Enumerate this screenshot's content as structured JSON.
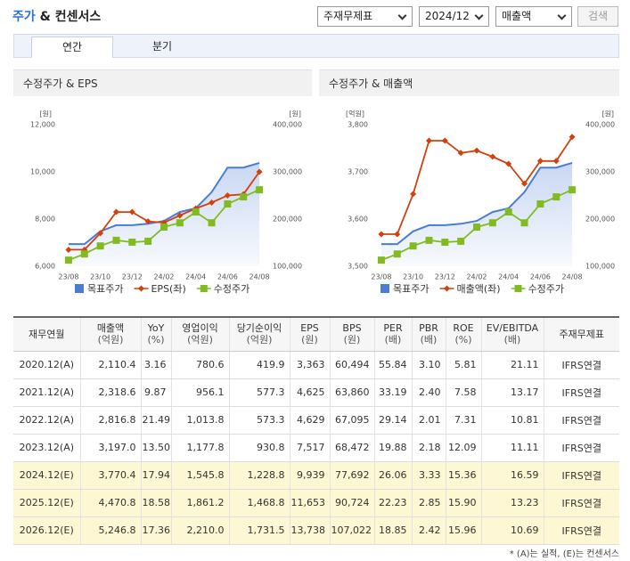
{
  "header": {
    "title": "주가",
    "title_suffix": "& 컨센서스",
    "selects": [
      "주재무제표",
      "2024/12",
      "매출액"
    ],
    "button": "검색"
  },
  "tabs": [
    "연간",
    "분기"
  ],
  "chart_data": [
    {
      "type": "line",
      "title": "수정주가 & EPS",
      "y_label": "[원]",
      "y2_label": "[원]",
      "categories": [
        "23/08",
        null,
        "23/10",
        null,
        "23/12",
        null,
        "24/02",
        null,
        "24/04",
        null,
        "24/06",
        null,
        "24/08"
      ],
      "ylim": [
        6000,
        12000
      ],
      "yticks": [
        {
          "value": 6000,
          "label": "6,000"
        },
        {
          "value": 8000,
          "label": "8,000"
        },
        {
          "value": 10000,
          "label": "10,000"
        },
        {
          "value": 12000,
          "label": "12,000"
        }
      ],
      "y2lim": [
        100000,
        400000
      ],
      "y2ticks": [
        {
          "value": 100000,
          "label": "100,000"
        },
        {
          "value": 200000,
          "label": "200,000"
        },
        {
          "value": 300000,
          "label": "300,000"
        },
        {
          "value": 400000,
          "label": "400,000"
        }
      ],
      "series": [
        {
          "name": "목표주가",
          "color": "#4a7bd8",
          "axis": "y2",
          "marker": "none",
          "fill": true,
          "values": [
            147000,
            147000,
            174000,
            187000,
            187000,
            190000,
            196000,
            215000,
            223000,
            257000,
            309000,
            309000,
            319000
          ]
        },
        {
          "name": "EPS(좌)",
          "color": "#d4400c",
          "marker": "diamond",
          "values": [
            6700,
            6700,
            7400,
            8300,
            8300,
            7900,
            7850,
            8150,
            8450,
            8700,
            9000,
            9050,
            10000
          ]
        },
        {
          "name": "수정주가",
          "color": "#80bc1f",
          "axis": "y2",
          "marker": "square",
          "values": [
            113000,
            126000,
            143000,
            155000,
            151000,
            153000,
            183000,
            192000,
            215000,
            192000,
            232000,
            247000,
            262000
          ]
        }
      ]
    },
    {
      "type": "line",
      "title": "수정주가 & 매출액",
      "y_label": "[억원]",
      "y2_label": "[원]",
      "categories": [
        "23/08",
        null,
        "23/10",
        null,
        "23/12",
        null,
        "24/02",
        null,
        "24/04",
        null,
        "24/06",
        null,
        "24/08"
      ],
      "ylim": [
        3500,
        3800
      ],
      "yticks": [
        {
          "value": 3500,
          "label": "3,500"
        },
        {
          "value": 3600,
          "label": "3,600"
        },
        {
          "value": 3700,
          "label": "3,700"
        },
        {
          "value": 3800,
          "label": "3,800"
        }
      ],
      "y2lim": [
        100000,
        400000
      ],
      "y2ticks": [
        {
          "value": 100000,
          "label": "100,000"
        },
        {
          "value": 200000,
          "label": "200,000"
        },
        {
          "value": 300000,
          "label": "300,000"
        },
        {
          "value": 400000,
          "label": "400,000"
        }
      ],
      "series": [
        {
          "name": "목표주가",
          "color": "#4a7bd8",
          "axis": "y2",
          "marker": "none",
          "fill": true,
          "values": [
            147000,
            147000,
            174000,
            187000,
            187000,
            190000,
            196000,
            215000,
            223000,
            257000,
            309000,
            309000,
            319000
          ]
        },
        {
          "name": "매출액(좌)",
          "color": "#d4400c",
          "marker": "diamond",
          "values": [
            3568,
            3568,
            3653,
            3766,
            3766,
            3740,
            3745,
            3732,
            3717,
            3675,
            3723,
            3723,
            3774
          ]
        },
        {
          "name": "수정주가",
          "color": "#80bc1f",
          "axis": "y2",
          "marker": "square",
          "values": [
            113000,
            126000,
            143000,
            155000,
            151000,
            153000,
            183000,
            192000,
            215000,
            192000,
            232000,
            247000,
            262000
          ]
        }
      ]
    }
  ],
  "table": {
    "columns": [
      {
        "label": "재무연월"
      },
      {
        "label": "매출액",
        "unit": "(억원)"
      },
      {
        "label": "YoY",
        "unit": "(%)"
      },
      {
        "label": "영업이익",
        "unit": "(억원)"
      },
      {
        "label": "당기순이익",
        "unit": "(억원)"
      },
      {
        "label": "EPS",
        "unit": "(원)"
      },
      {
        "label": "BPS",
        "unit": "(원)"
      },
      {
        "label": "PER",
        "unit": "(배)"
      },
      {
        "label": "PBR",
        "unit": "(배)"
      },
      {
        "label": "ROE",
        "unit": "(%)"
      },
      {
        "label": "EV/EBITDA",
        "unit": "(배)"
      },
      {
        "label": "주재무제표"
      }
    ],
    "rows": [
      [
        "2020.12(A)",
        "2,110.4",
        "3.16",
        "780.6",
        "419.9",
        "3,363",
        "60,494",
        "55.84",
        "3.10",
        "5.81",
        "21.11",
        "IFRS연결"
      ],
      [
        "2021.12(A)",
        "2,318.6",
        "9.87",
        "956.1",
        "577.3",
        "4,625",
        "63,860",
        "33.19",
        "2.40",
        "7.58",
        "13.17",
        "IFRS연결"
      ],
      [
        "2022.12(A)",
        "2,816.8",
        "21.49",
        "1,013.8",
        "573.3",
        "4,629",
        "67,095",
        "29.14",
        "2.01",
        "7.31",
        "10.81",
        "IFRS연결"
      ],
      [
        "2023.12(A)",
        "3,197.0",
        "13.50",
        "1,177.8",
        "930.8",
        "7,517",
        "68,472",
        "19.88",
        "2.18",
        "12.09",
        "11.11",
        "IFRS연결"
      ],
      [
        "2024.12(E)",
        "3,770.4",
        "17.94",
        "1,545.8",
        "1,228.8",
        "9,939",
        "77,692",
        "26.06",
        "3.33",
        "15.36",
        "16.59",
        "IFRS연결"
      ],
      [
        "2025.12(E)",
        "4,470.8",
        "18.58",
        "1,861.2",
        "1,468.8",
        "11,653",
        "90,724",
        "22.23",
        "2.85",
        "15.90",
        "13.23",
        "IFRS연결"
      ],
      [
        "2026.12(E)",
        "5,246.8",
        "17.36",
        "2,210.0",
        "1,731.5",
        "13,738",
        "107,022",
        "18.85",
        "2.42",
        "15.96",
        "10.69",
        "IFRS연결"
      ]
    ]
  },
  "footnote": "* (A)는 실적, (E)는 컨센서스"
}
